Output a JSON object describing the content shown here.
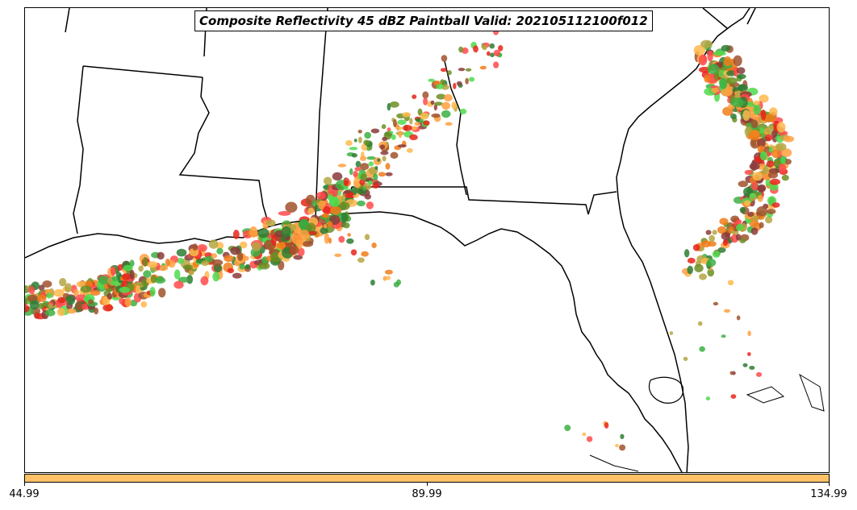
{
  "map": {
    "title": "Composite Reflectivity 45 dBZ Paintball Valid: 202105112100f012",
    "colors": {
      "coastline": "#000000",
      "background": "#ffffff",
      "paintball_palette": [
        "#e8241a",
        "#ff4a4a",
        "#f07c1a",
        "#ffa040",
        "#ffb84d",
        "#8b3a3a",
        "#a0522d",
        "#b5a642",
        "#2e7d32",
        "#3cb043",
        "#4ddb4d",
        "#6b8e23"
      ]
    }
  },
  "colorbar": {
    "fill_color": "#ffc266",
    "ticks": [
      "44.99",
      "89.99",
      "134.99"
    ]
  }
}
